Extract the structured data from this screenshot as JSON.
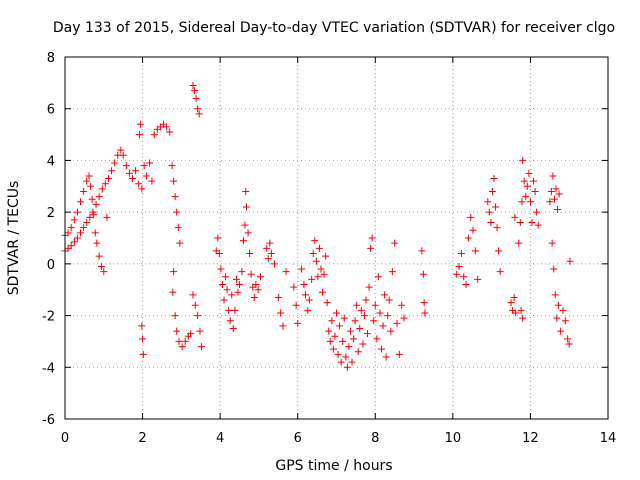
{
  "colors": {
    "series": "#ff0000",
    "axis": "#000000",
    "grid": "#a0a0a0",
    "background": "#ffffff"
  },
  "chart_data": {
    "type": "scatter",
    "title": "Day 133 of 2015, Sidereal Day-to-day VTEC variation (SDTVAR) for receiver clgo",
    "xlabel": "GPS time / hours",
    "ylabel": "SDTVAR / TECUs",
    "xlim": [
      0,
      14
    ],
    "ylim": [
      -6,
      8
    ],
    "xticks": [
      0,
      2,
      4,
      6,
      8,
      10,
      12,
      14
    ],
    "yticks": [
      -6,
      -4,
      -2,
      0,
      2,
      4,
      6,
      8
    ],
    "grid": true,
    "marker": "plus",
    "series": [
      {
        "name": "SDTVAR",
        "points": [
          [
            0.0,
            0.5
          ],
          [
            0.08,
            0.6
          ],
          [
            0.16,
            0.7
          ],
          [
            0.24,
            0.85
          ],
          [
            0.32,
            1.0
          ],
          [
            0.4,
            1.2
          ],
          [
            0.48,
            1.4
          ],
          [
            0.56,
            1.6
          ],
          [
            0.64,
            1.8
          ],
          [
            0.72,
            2.0
          ],
          [
            0.8,
            2.3
          ],
          [
            0.88,
            2.6
          ],
          [
            0.96,
            2.9
          ],
          [
            1.04,
            3.1
          ],
          [
            1.12,
            3.3
          ],
          [
            1.2,
            3.6
          ],
          [
            1.28,
            3.9
          ],
          [
            1.36,
            4.2
          ],
          [
            1.44,
            4.4
          ],
          [
            0.0,
            1.1
          ],
          [
            0.08,
            1.2
          ],
          [
            0.16,
            1.4
          ],
          [
            0.24,
            1.7
          ],
          [
            0.32,
            2.0
          ],
          [
            0.4,
            2.4
          ],
          [
            0.48,
            2.8
          ],
          [
            0.56,
            3.2
          ],
          [
            0.62,
            3.4
          ],
          [
            0.66,
            3.0
          ],
          [
            0.7,
            2.5
          ],
          [
            0.74,
            1.9
          ],
          [
            0.78,
            1.2
          ],
          [
            0.82,
            0.8
          ],
          [
            0.88,
            0.3
          ],
          [
            0.94,
            -0.1
          ],
          [
            1.0,
            -0.3
          ],
          [
            1.08,
            1.8
          ],
          [
            1.5,
            4.2
          ],
          [
            1.58,
            3.8
          ],
          [
            1.66,
            3.5
          ],
          [
            1.74,
            3.3
          ],
          [
            1.82,
            3.6
          ],
          [
            1.9,
            3.1
          ],
          [
            1.98,
            2.9
          ],
          [
            2.04,
            3.8
          ],
          [
            2.1,
            3.4
          ],
          [
            2.18,
            3.9
          ],
          [
            2.24,
            3.2
          ],
          [
            1.92,
            5.0
          ],
          [
            1.95,
            5.4
          ],
          [
            1.98,
            -2.4
          ],
          [
            2.0,
            -2.9
          ],
          [
            2.02,
            -3.5
          ],
          [
            2.3,
            5.0
          ],
          [
            2.38,
            5.2
          ],
          [
            2.46,
            5.3
          ],
          [
            2.54,
            5.4
          ],
          [
            2.62,
            5.3
          ],
          [
            2.7,
            5.1
          ],
          [
            2.76,
            3.8
          ],
          [
            2.8,
            3.2
          ],
          [
            2.84,
            2.6
          ],
          [
            2.88,
            2.0
          ],
          [
            2.92,
            1.4
          ],
          [
            2.96,
            0.8
          ],
          [
            2.8,
            -0.3
          ],
          [
            2.78,
            -1.1
          ],
          [
            2.84,
            -2.0
          ],
          [
            2.88,
            -2.6
          ],
          [
            2.94,
            -3.0
          ],
          [
            3.02,
            -3.2
          ],
          [
            3.1,
            -3.0
          ],
          [
            3.18,
            -2.8
          ],
          [
            3.24,
            -2.7
          ],
          [
            3.3,
            6.9
          ],
          [
            3.34,
            6.7
          ],
          [
            3.38,
            6.4
          ],
          [
            3.42,
            6.0
          ],
          [
            3.46,
            5.8
          ],
          [
            3.3,
            -1.2
          ],
          [
            3.36,
            -1.6
          ],
          [
            3.42,
            -2.0
          ],
          [
            3.48,
            -2.6
          ],
          [
            3.52,
            -3.2
          ],
          [
            3.9,
            0.5
          ],
          [
            3.94,
            1.0
          ],
          [
            3.98,
            0.4
          ],
          [
            4.02,
            -0.2
          ],
          [
            4.06,
            -0.8
          ],
          [
            4.1,
            -1.4
          ],
          [
            4.14,
            -0.5
          ],
          [
            4.18,
            -1.0
          ],
          [
            4.22,
            -1.8
          ],
          [
            4.26,
            -2.2
          ],
          [
            4.3,
            -1.2
          ],
          [
            4.34,
            -2.5
          ],
          [
            4.38,
            -1.8
          ],
          [
            4.42,
            -0.6
          ],
          [
            4.46,
            -1.1
          ],
          [
            4.5,
            -0.8
          ],
          [
            4.56,
            -0.3
          ],
          [
            4.6,
            0.9
          ],
          [
            4.64,
            1.5
          ],
          [
            4.66,
            2.8
          ],
          [
            4.68,
            2.2
          ],
          [
            4.72,
            1.2
          ],
          [
            4.76,
            0.4
          ],
          [
            4.8,
            -0.4
          ],
          [
            4.84,
            -0.9
          ],
          [
            4.88,
            -1.3
          ],
          [
            4.92,
            -0.8
          ],
          [
            4.98,
            -1.0
          ],
          [
            5.04,
            -0.5
          ],
          [
            5.2,
            0.6
          ],
          [
            5.24,
            0.2
          ],
          [
            5.28,
            0.8
          ],
          [
            5.32,
            0.4
          ],
          [
            5.4,
            0.0
          ],
          [
            5.5,
            -1.3
          ],
          [
            5.56,
            -1.9
          ],
          [
            5.62,
            -2.4
          ],
          [
            5.7,
            -0.3
          ],
          [
            5.9,
            -0.9
          ],
          [
            5.96,
            -1.6
          ],
          [
            6.0,
            -2.3
          ],
          [
            6.1,
            -0.2
          ],
          [
            6.16,
            -0.8
          ],
          [
            6.2,
            -1.2
          ],
          [
            6.26,
            -1.8
          ],
          [
            6.3,
            -1.4
          ],
          [
            6.36,
            -0.6
          ],
          [
            6.4,
            0.4
          ],
          [
            6.44,
            0.9
          ],
          [
            6.48,
            0.1
          ],
          [
            6.52,
            -0.5
          ],
          [
            6.56,
            0.6
          ],
          [
            6.6,
            -0.2
          ],
          [
            6.64,
            -1.1
          ],
          [
            6.68,
            -0.4
          ],
          [
            6.72,
            0.3
          ],
          [
            6.76,
            -1.5
          ],
          [
            6.8,
            -2.6
          ],
          [
            6.84,
            -3.0
          ],
          [
            6.88,
            -2.2
          ],
          [
            6.92,
            -3.3
          ],
          [
            6.96,
            -2.8
          ],
          [
            7.0,
            -1.9
          ],
          [
            7.04,
            -3.5
          ],
          [
            7.08,
            -2.4
          ],
          [
            7.12,
            -3.8
          ],
          [
            7.16,
            -3.0
          ],
          [
            7.2,
            -2.1
          ],
          [
            7.24,
            -3.6
          ],
          [
            7.28,
            -4.0
          ],
          [
            7.32,
            -3.2
          ],
          [
            7.36,
            -2.6
          ],
          [
            7.4,
            -3.8
          ],
          [
            7.44,
            -2.9
          ],
          [
            7.48,
            -2.2
          ],
          [
            7.52,
            -1.6
          ],
          [
            7.56,
            -3.4
          ],
          [
            7.6,
            -2.5
          ],
          [
            7.64,
            -1.8
          ],
          [
            7.68,
            -3.1
          ],
          [
            7.72,
            -2.0
          ],
          [
            7.76,
            -1.4
          ],
          [
            7.8,
            -2.7
          ],
          [
            7.84,
            -0.9
          ],
          [
            7.88,
            0.6
          ],
          [
            7.92,
            1.0
          ],
          [
            7.96,
            -2.2
          ],
          [
            8.0,
            -1.6
          ],
          [
            8.04,
            -2.9
          ],
          [
            8.08,
            -0.5
          ],
          [
            8.12,
            -1.9
          ],
          [
            8.16,
            -3.3
          ],
          [
            8.2,
            -2.4
          ],
          [
            8.24,
            -1.2
          ],
          [
            8.28,
            -3.6
          ],
          [
            8.32,
            -2.0
          ],
          [
            8.36,
            -1.4
          ],
          [
            8.4,
            -2.6
          ],
          [
            8.44,
            -0.3
          ],
          [
            8.5,
            0.8
          ],
          [
            8.56,
            -2.3
          ],
          [
            8.62,
            -3.5
          ],
          [
            8.68,
            -1.6
          ],
          [
            8.74,
            -2.1
          ],
          [
            9.2,
            0.5
          ],
          [
            9.24,
            -0.4
          ],
          [
            9.26,
            -1.5
          ],
          [
            9.28,
            -1.9
          ],
          [
            10.1,
            -0.4
          ],
          [
            10.16,
            -0.1
          ],
          [
            10.22,
            0.4
          ],
          [
            10.28,
            -0.5
          ],
          [
            10.34,
            -0.8
          ],
          [
            10.4,
            1.0
          ],
          [
            10.46,
            1.8
          ],
          [
            10.52,
            1.3
          ],
          [
            10.58,
            0.5
          ],
          [
            10.64,
            -0.6
          ],
          [
            10.9,
            2.4
          ],
          [
            10.94,
            2.0
          ],
          [
            10.98,
            1.6
          ],
          [
            11.02,
            2.8
          ],
          [
            11.06,
            3.3
          ],
          [
            11.1,
            2.2
          ],
          [
            11.14,
            1.4
          ],
          [
            11.18,
            0.5
          ],
          [
            11.22,
            -0.3
          ],
          [
            11.5,
            -1.5
          ],
          [
            11.54,
            -1.8
          ],
          [
            11.58,
            -1.3
          ],
          [
            11.62,
            -1.9
          ],
          [
            11.6,
            1.8
          ],
          [
            11.7,
            0.8
          ],
          [
            11.74,
            1.6
          ],
          [
            11.78,
            2.4
          ],
          [
            11.8,
            4.0
          ],
          [
            11.84,
            3.2
          ],
          [
            11.88,
            2.6
          ],
          [
            11.92,
            3.0
          ],
          [
            11.96,
            3.5
          ],
          [
            12.0,
            2.4
          ],
          [
            12.04,
            1.6
          ],
          [
            12.08,
            3.2
          ],
          [
            12.12,
            2.8
          ],
          [
            12.16,
            2.0
          ],
          [
            12.2,
            1.5
          ],
          [
            11.76,
            -1.8
          ],
          [
            11.8,
            -2.1
          ],
          [
            12.5,
            2.4
          ],
          [
            12.54,
            2.8
          ],
          [
            12.58,
            3.4
          ],
          [
            12.62,
            2.5
          ],
          [
            12.66,
            2.9
          ],
          [
            12.7,
            2.1
          ],
          [
            12.74,
            2.7
          ],
          [
            12.56,
            0.8
          ],
          [
            12.6,
            -0.2
          ],
          [
            12.64,
            -1.2
          ],
          [
            12.68,
            -2.1
          ],
          [
            12.72,
            -1.6
          ],
          [
            12.78,
            -2.6
          ],
          [
            12.84,
            -1.8
          ],
          [
            12.9,
            -2.2
          ],
          [
            12.96,
            -2.9
          ],
          [
            13.0,
            -3.1
          ],
          [
            13.02,
            0.1
          ]
        ]
      }
    ]
  }
}
